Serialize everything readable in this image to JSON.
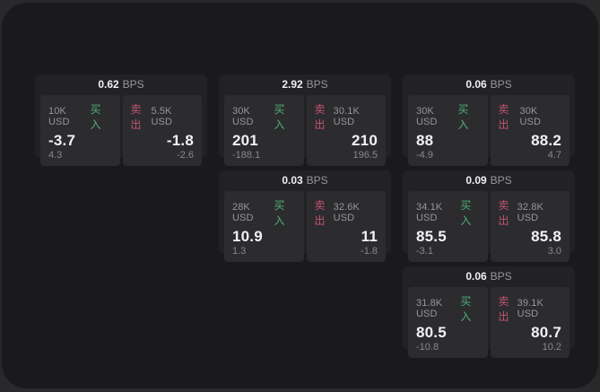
{
  "theme": {
    "backdrop": "#29292c",
    "surface": "#1a1a1c",
    "card_bg": "#222225",
    "panel_bg": "#2c2c2f",
    "buy_color": "#4fae74",
    "sell_color": "#c2536f",
    "muted_text": "#96969a",
    "primary_text": "#f2f2f4"
  },
  "labels": {
    "bps_unit": "BPS",
    "buy": "买入",
    "sell": "卖出"
  },
  "cards": [
    {
      "bps_value": "0.62",
      "bps_unit": "BPS",
      "buy": {
        "amount": "10K USD",
        "action": "买入",
        "price": "-3.7",
        "delta": "4.3"
      },
      "sell": {
        "action": "卖出",
        "amount": "5.5K USD",
        "price": "-1.8",
        "delta": "-2.6"
      }
    },
    {
      "bps_value": "2.92",
      "bps_unit": "BPS",
      "buy": {
        "amount": "30K USD",
        "action": "买入",
        "price": "201",
        "delta": "-188.1"
      },
      "sell": {
        "action": "卖出",
        "amount": "30.1K USD",
        "price": "210",
        "delta": "196.5"
      }
    },
    {
      "bps_value": "0.06",
      "bps_unit": "BPS",
      "buy": {
        "amount": "30K USD",
        "action": "买入",
        "price": "88",
        "delta": "-4.9"
      },
      "sell": {
        "action": "卖出",
        "amount": "30K USD",
        "price": "88.2",
        "delta": "4.7"
      }
    },
    {
      "bps_value": "0.03",
      "bps_unit": "BPS",
      "buy": {
        "amount": "28K USD",
        "action": "买入",
        "price": "10.9",
        "delta": "1.3"
      },
      "sell": {
        "action": "卖出",
        "amount": "32.6K USD",
        "price": "11",
        "delta": "-1.8"
      }
    },
    {
      "bps_value": "0.09",
      "bps_unit": "BPS",
      "buy": {
        "amount": "34.1K USD",
        "action": "买入",
        "price": "85.5",
        "delta": "-3.1"
      },
      "sell": {
        "action": "卖出",
        "amount": "32.8K USD",
        "price": "85.8",
        "delta": "3.0"
      }
    },
    {
      "bps_value": "0.06",
      "bps_unit": "BPS",
      "buy": {
        "amount": "31.8K USD",
        "action": "买入",
        "price": "80.5",
        "delta": "-10.8"
      },
      "sell": {
        "action": "卖出",
        "amount": "39.1K USD",
        "price": "80.7",
        "delta": "10.2"
      }
    }
  ]
}
